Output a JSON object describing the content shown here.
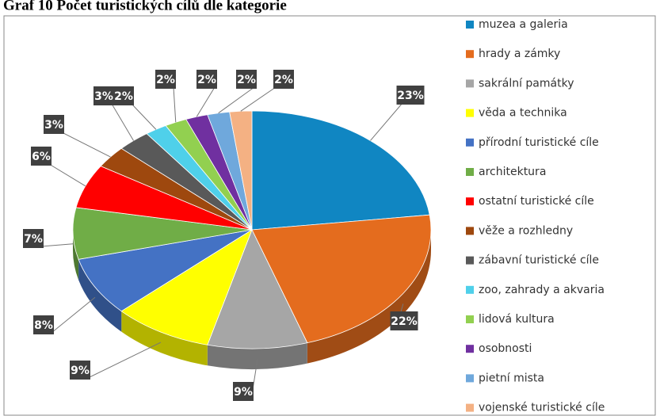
{
  "chart_data": {
    "type": "pie",
    "title": "Graf 10 Počet turistických cílů dle kategorie",
    "categories": [
      "muzea a galeria",
      "hrady a zámky",
      "sakrální památky",
      "věda a technika",
      "přírodní turistické cíle",
      "architektura",
      "ostatní turistické cíle",
      "věže a rozhledny",
      "zábavní turistické cíle",
      "zoo, zahrady a akvaria",
      "lidová kultura",
      "osobnosti",
      "pietní mista",
      "vojenské turistické cíle"
    ],
    "values": [
      23,
      22,
      9,
      9,
      8,
      7,
      6,
      3,
      3,
      2,
      2,
      2,
      2,
      2
    ],
    "value_labels": [
      "23%",
      "22%",
      "9%",
      "9%",
      "8%",
      "7%",
      "6%",
      "3%",
      "3%",
      "2%",
      "2%",
      "2%",
      "2%",
      "2%"
    ],
    "colors": [
      "#1086c2",
      "#e46c1e",
      "#a6a6a6",
      "#ffff00",
      "#4472c4",
      "#70ad47",
      "#ff0000",
      "#9e480e",
      "#595959",
      "#4fd0ea",
      "#92d050",
      "#7030a0",
      "#6fa8dc",
      "#f4b183"
    ],
    "legend": "right"
  }
}
